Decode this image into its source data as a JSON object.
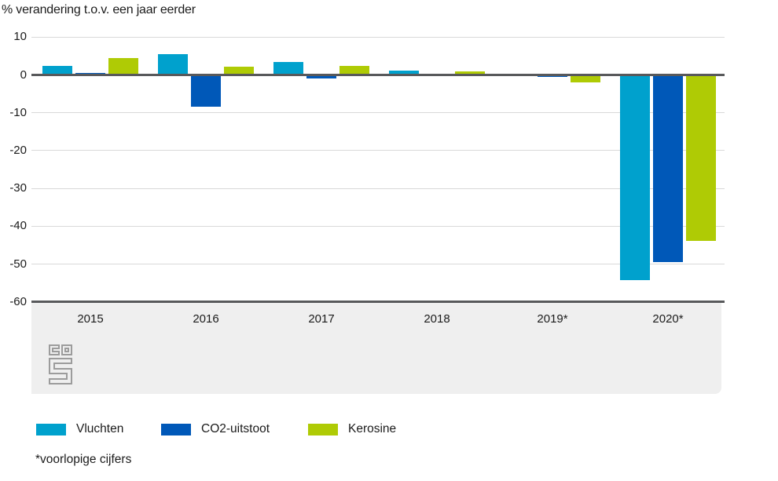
{
  "title": "% verandering t.o.v. een jaar eerder",
  "footnote": "*voorlopige cijfers",
  "logo": "cbs-logo",
  "colors": {
    "vluchten": "#00a1cd",
    "co2_uitstoot": "#0058b8",
    "kerosine": "#afcb05",
    "axis": "#58595b",
    "grid": "#d9d9d9",
    "band": "#efefef",
    "text": "#1b1b1b"
  },
  "chart_data": {
    "type": "bar",
    "title": "% verandering t.o.v. een jaar eerder",
    "xlabel": "",
    "ylabel": "% verandering t.o.v. een jaar eerder",
    "categories": [
      "2015",
      "2016",
      "2017",
      "2018",
      "2019*",
      "2020*"
    ],
    "series": [
      {
        "name": "Vluchten",
        "color": "#00a1cd",
        "values": [
          2.5,
          5.6,
          3.5,
          1.2,
          0,
          -54.3
        ]
      },
      {
        "name": "CO2-uitstoot",
        "color": "#0058b8",
        "values": [
          0.6,
          -8.4,
          -1.0,
          0,
          -0.5,
          -49.4
        ]
      },
      {
        "name": "Kerosine",
        "color": "#afcb05",
        "values": [
          4.4,
          2.1,
          2.5,
          0.9,
          -2.0,
          -43.9
        ]
      }
    ],
    "ylim": [
      -60,
      10
    ],
    "yticks": [
      10,
      0,
      -10,
      -20,
      -30,
      -40,
      -50,
      -60
    ],
    "grid": true,
    "legend_position": "bottom"
  }
}
